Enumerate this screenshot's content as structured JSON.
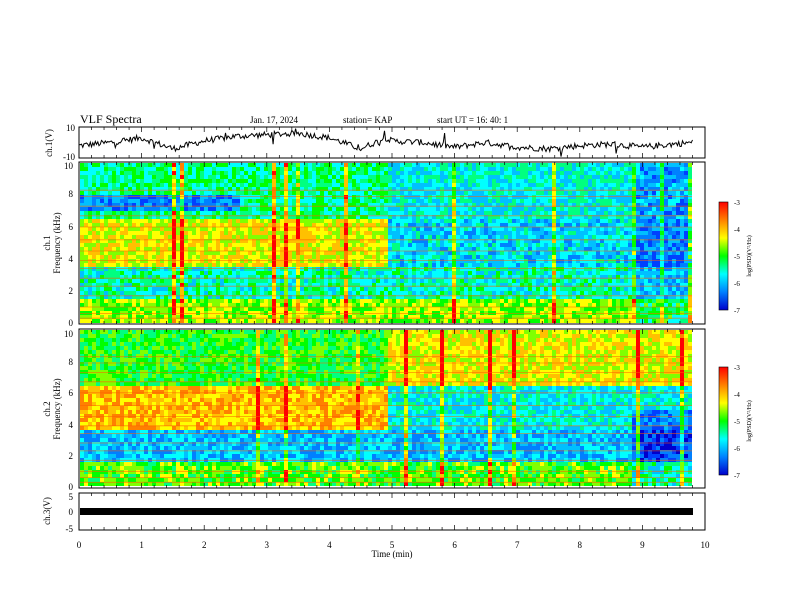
{
  "header": {
    "title": "VLF Spectra",
    "date": "Jan. 17, 2024",
    "station": "station= KAP",
    "start": "start  UT =   16: 40: 1"
  },
  "colorbar": {
    "label": "log(PSD)(V²/Hz)",
    "ticks": [
      "-3",
      "-4",
      "-5",
      "-6",
      "-7"
    ],
    "colors": [
      "#ff0000",
      "#ff8000",
      "#ffff00",
      "#00ff00",
      "#00ffff",
      "#0080ff",
      "#0000cc"
    ]
  },
  "chart_data": [
    {
      "type": "line",
      "name": "ch1-waveform",
      "ylabel": "ch.1(V)",
      "ylim": [
        -10,
        10
      ],
      "yticks": [
        "10",
        "-10"
      ],
      "xlim": [
        0,
        10
      ],
      "x": [
        0,
        0.5,
        1.0,
        1.5,
        2.0,
        2.5,
        3.0,
        3.5,
        4.0,
        4.5,
        4.9,
        5.0,
        5.5,
        6.0,
        6.5,
        7.0,
        7.5,
        8.0,
        8.5,
        9.0,
        9.5,
        9.8
      ],
      "values": [
        -2,
        0,
        3,
        -4,
        1,
        4,
        5,
        6,
        3,
        -4,
        3,
        1,
        0,
        -3,
        0,
        -3,
        -4,
        -2,
        -1,
        -3,
        -1,
        0
      ]
    },
    {
      "type": "heatmap",
      "name": "ch1-spectrogram",
      "ylabel": "ch.1\nFrequency (kHz)",
      "ylim": [
        0,
        10
      ],
      "yticks": [
        "0",
        "2",
        "4",
        "6",
        "8",
        "10"
      ],
      "xlim": [
        0,
        9.8
      ]
    },
    {
      "type": "heatmap",
      "name": "ch2-spectrogram",
      "ylabel": "ch.2\nFrequency (kHz)",
      "ylim": [
        0,
        10
      ],
      "yticks": [
        "0",
        "2",
        "4",
        "6",
        "8",
        "10"
      ],
      "xlim": [
        0,
        9.8
      ]
    },
    {
      "type": "line",
      "name": "ch3-waveform",
      "ylabel": "ch.3(V)",
      "ylim": [
        -5,
        5
      ],
      "yticks": [
        "5",
        "0",
        "-5"
      ],
      "xlim": [
        0,
        10
      ],
      "x": [
        0,
        9.8
      ],
      "values": [
        0,
        0
      ],
      "xlabel": "Time  (min)",
      "xticks": [
        "0",
        "1",
        "2",
        "3",
        "4",
        "5",
        "6",
        "7",
        "8",
        "9",
        "10"
      ]
    }
  ]
}
